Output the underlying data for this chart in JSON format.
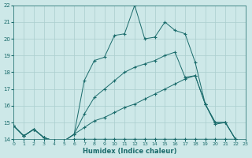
{
  "xlabel": "Humidex (Indice chaleur)",
  "bg_color": "#cde8e8",
  "grid_color": "#aacece",
  "line_color": "#1a6b6b",
  "xlim": [
    0,
    23
  ],
  "ylim": [
    14,
    22
  ],
  "yticks": [
    14,
    15,
    16,
    17,
    18,
    19,
    20,
    21,
    22
  ],
  "xticks": [
    0,
    1,
    2,
    3,
    4,
    5,
    6,
    7,
    8,
    9,
    10,
    11,
    12,
    13,
    14,
    15,
    16,
    17,
    18,
    19,
    20,
    21,
    22,
    23
  ],
  "lines": [
    [
      14.8,
      14.2,
      14.6,
      14.1,
      13.9,
      13.9,
      14.0,
      14.0,
      14.0,
      14.0,
      14.0,
      14.0,
      14.0,
      14.0,
      14.0,
      14.0,
      14.0,
      14.0,
      14.0,
      14.0,
      14.0,
      14.0,
      14.0,
      13.8
    ],
    [
      14.8,
      14.2,
      14.6,
      14.1,
      13.9,
      13.9,
      14.3,
      14.7,
      15.1,
      15.3,
      15.6,
      15.9,
      16.1,
      16.4,
      16.7,
      17.0,
      17.3,
      17.6,
      17.8,
      16.1,
      15.0,
      15.0,
      14.0,
      13.8
    ],
    [
      14.8,
      14.2,
      14.6,
      14.1,
      13.9,
      13.9,
      14.3,
      15.5,
      16.5,
      17.0,
      17.5,
      18.0,
      18.3,
      18.5,
      18.7,
      19.0,
      19.2,
      17.7,
      17.8,
      16.1,
      15.0,
      15.0,
      14.0,
      13.8
    ],
    [
      14.8,
      14.2,
      14.6,
      14.1,
      13.9,
      13.9,
      14.3,
      17.5,
      18.7,
      18.9,
      20.2,
      20.3,
      22.0,
      20.0,
      20.1,
      21.0,
      20.5,
      20.3,
      18.6,
      16.1,
      14.9,
      15.0,
      14.0,
      13.8
    ]
  ]
}
